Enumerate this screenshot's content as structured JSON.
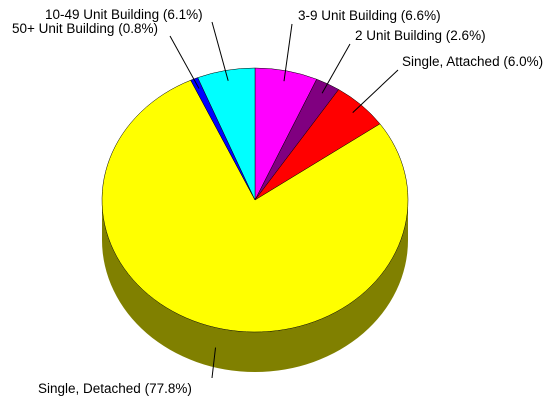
{
  "chart_data": {
    "type": "pie",
    "style": "3d",
    "slices": [
      {
        "label": "3-9 Unit Building (6.6%)",
        "category": "3-9 Unit Building",
        "value": 6.6,
        "color": "#FF00FF",
        "side": "#7F007F"
      },
      {
        "label": "2 Unit Building (2.6%)",
        "category": "2 Unit Building",
        "value": 2.6,
        "color": "#800080",
        "side": "#400040"
      },
      {
        "label": "Single, Attached (6.0%)",
        "category": "Single, Attached",
        "value": 6.0,
        "color": "#FF0000",
        "side": "#800000"
      },
      {
        "label": "Single, Detached (77.8%)",
        "category": "Single, Detached",
        "value": 77.8,
        "color": "#FFFF00",
        "side": "#808000"
      },
      {
        "label": "50+ Unit Building (0.8%)",
        "category": "50+ Unit Building",
        "value": 0.8,
        "color": "#0000FF",
        "side": "#000080"
      },
      {
        "label": "10-49 Unit Building (6.1%)",
        "category": "10-49 Unit Building",
        "value": 6.1,
        "color": "#00FFFF",
        "side": "#008080"
      }
    ],
    "start": "12 o'clock",
    "direction": "clockwise",
    "legend": "none",
    "data_labels": "outside with leader lines"
  }
}
